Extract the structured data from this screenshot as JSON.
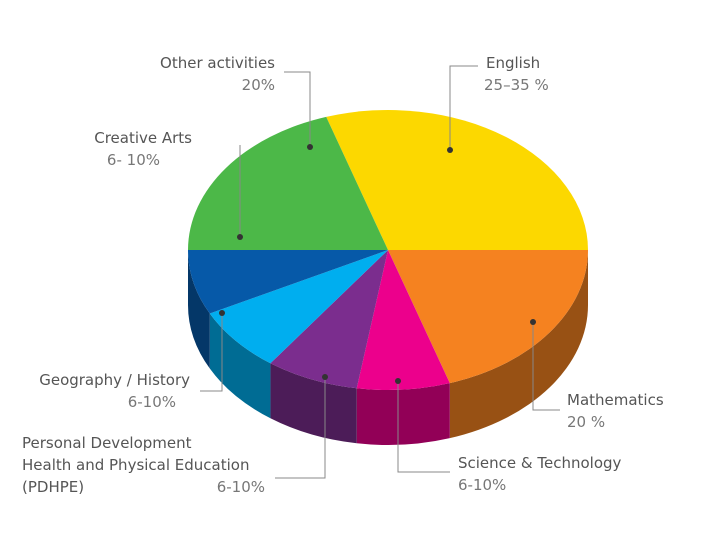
{
  "chart_data": {
    "type": "pie",
    "categories": [
      "English",
      "Mathematics",
      "Science & Technology",
      "Personal Development\nHealth and Physical Education\n(PDHPE)",
      "Geography / History",
      "Creative Arts",
      "Other activities"
    ],
    "values": [
      30,
      20,
      7.5,
      7.5,
      7.5,
      7.5,
      20
    ],
    "value_labels": [
      "25–35  %",
      "20 %",
      "6-10%",
      "6-10%",
      "6-10%",
      "6- 10%",
      "20%"
    ],
    "colors": [
      "#fcd800",
      "#f58220",
      "#ec008c",
      "#7b2d8e",
      "#00aeef",
      "#0659a8",
      "#4cb848"
    ]
  }
}
